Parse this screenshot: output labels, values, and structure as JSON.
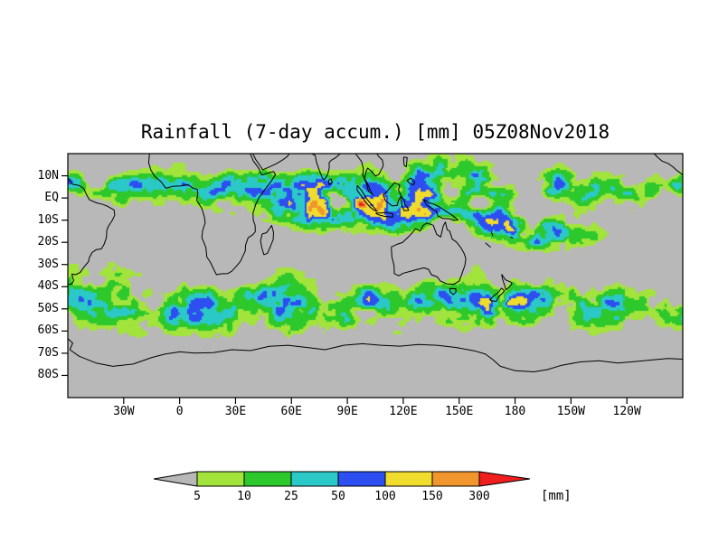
{
  "title": "Rainfall (7-day accum.) [mm] 05Z08Nov2018",
  "chart_data": {
    "type": "heatmap",
    "title": "Rainfall (7-day accum.) [mm] 05Z08Nov2018",
    "variable": "Rainfall (7-day accumulation)",
    "unit": "mm",
    "valid_time": "05Z08Nov2018",
    "map": {
      "lat_range": [
        -90,
        20
      ],
      "lon_range": [
        -60,
        270
      ],
      "lat_ticks": [
        {
          "label": "10N",
          "value": 10
        },
        {
          "label": "EQ",
          "value": 0
        },
        {
          "label": "10S",
          "value": -10
        },
        {
          "label": "20S",
          "value": -20
        },
        {
          "label": "30S",
          "value": -30
        },
        {
          "label": "40S",
          "value": -40
        },
        {
          "label": "50S",
          "value": -50
        },
        {
          "label": "60S",
          "value": -60
        },
        {
          "label": "70S",
          "value": -70
        },
        {
          "label": "80S",
          "value": -80
        }
      ],
      "lon_ticks": [
        {
          "label": "30W",
          "value": -30
        },
        {
          "label": "0",
          "value": 0
        },
        {
          "label": "30E",
          "value": 30
        },
        {
          "label": "60E",
          "value": 60
        },
        {
          "label": "90E",
          "value": 90
        },
        {
          "label": "120E",
          "value": 120
        },
        {
          "label": "150E",
          "value": 150
        },
        {
          "label": "180",
          "value": 180
        },
        {
          "label": "150W",
          "value": 210
        },
        {
          "label": "120W",
          "value": 240
        }
      ],
      "no_data_color": "#b8b8b8",
      "coastline_color": "#000000",
      "frame_color": "#000000"
    },
    "colorbar": {
      "levels": [
        "5",
        "10",
        "25",
        "50",
        "100",
        "150",
        "300"
      ],
      "colors": [
        "#b8b8b8",
        "#a2e33c",
        "#2cc82c",
        "#2bc8c8",
        "#2d4ef0",
        "#f0dc2d",
        "#f0962d",
        "#f01e1e"
      ],
      "unit_label": "[mm]"
    },
    "legend_position": "bottom",
    "grid": false,
    "pattern_summary": [
      "Heavy rain (orange/red, >150mm) along ITCZ over the Indian Ocean and Maritime Continent",
      "Orange SPCZ band southeast of New Guinea toward 150W",
      "Green/cyan/blue storm tracks across the Southern Ocean 35S-60S",
      "Gray (<5mm) over subtropical highs and Antarctica"
    ]
  }
}
